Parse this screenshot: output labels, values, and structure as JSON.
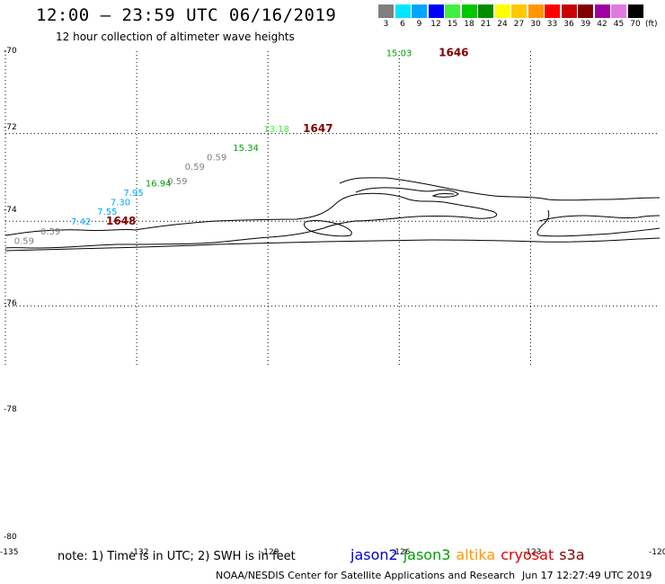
{
  "header": {
    "title": "12:00 – 23:59 UTC 06/16/2019",
    "subtitle": "12 hour collection of altimeter wave heights"
  },
  "legend": {
    "unit": "(ft)",
    "bins": [
      {
        "label": "3",
        "color": "#808080"
      },
      {
        "label": "6",
        "color": "#00e6ff"
      },
      {
        "label": "9",
        "color": "#00a6ff"
      },
      {
        "label": "12",
        "color": "#0000ff"
      },
      {
        "label": "15",
        "color": "#40f040"
      },
      {
        "label": "18",
        "color": "#00c800"
      },
      {
        "label": "21",
        "color": "#008c00"
      },
      {
        "label": "24",
        "color": "#ffff00"
      },
      {
        "label": "27",
        "color": "#ffc800"
      },
      {
        "label": "30",
        "color": "#ff9600"
      },
      {
        "label": "33",
        "color": "#ff0000"
      },
      {
        "label": "36",
        "color": "#c80000"
      },
      {
        "label": "39",
        "color": "#820000"
      },
      {
        "label": "42",
        "color": "#a000a0"
      },
      {
        "label": "45",
        "color": "#e07ae0"
      },
      {
        "label": "70",
        "color": "#000000"
      }
    ]
  },
  "map": {
    "lat_labels": [
      {
        "value": "-70",
        "lat": -70
      },
      {
        "value": "-72",
        "lat": -72
      },
      {
        "value": "-74",
        "lat": -74
      },
      {
        "value": "-76",
        "lat": -76
      },
      {
        "value": "-78",
        "lat": -78
      },
      {
        "value": "-80",
        "lat": -80
      }
    ],
    "lon_labels": [
      {
        "value": "-135",
        "lon": -135
      },
      {
        "value": "-132",
        "lon": -132
      },
      {
        "value": "-129",
        "lon": -129
      },
      {
        "value": "-126",
        "lon": -126
      },
      {
        "value": "-123",
        "lon": -123
      },
      {
        "value": "-120",
        "lon": -120
      }
    ],
    "observations": [
      {
        "text": "15.03",
        "color": "#00a000",
        "lon": -126.3,
        "lat": -70.1
      },
      {
        "text": "1646",
        "color": "#820000",
        "lon": -125.1,
        "lat": -70.1,
        "time": true
      },
      {
        "text": "13.18",
        "color": "#40f040",
        "lon": -129.1,
        "lat": -71.7
      },
      {
        "text": "1647",
        "color": "#820000",
        "lon": -128.2,
        "lat": -71.7,
        "time": true
      },
      {
        "text": "15.34",
        "color": "#00a000",
        "lon": -129.8,
        "lat": -72.1
      },
      {
        "text": "0.59",
        "color": "#808080",
        "lon": -130.4,
        "lat": -72.3
      },
      {
        "text": "0.59",
        "color": "#808080",
        "lon": -130.9,
        "lat": -72.5
      },
      {
        "text": "0.59",
        "color": "#808080",
        "lon": -131.3,
        "lat": -72.8
      },
      {
        "text": "16.94",
        "color": "#00a000",
        "lon": -131.8,
        "lat": -73.0
      },
      {
        "text": "7.95",
        "color": "#00a6ff",
        "lon": -132.3,
        "lat": -73.2
      },
      {
        "text": "7.30",
        "color": "#00a6ff",
        "lon": -132.6,
        "lat": -73.4
      },
      {
        "text": "7.55",
        "color": "#00a6ff",
        "lon": -132.9,
        "lat": -73.6
      },
      {
        "text": "7.42",
        "color": "#00a6ff",
        "lon": -133.5,
        "lat": -74.0
      },
      {
        "text": "1648",
        "color": "#820000",
        "lon": -132.7,
        "lat": -74.0,
        "time": true
      },
      {
        "text": "0.59",
        "color": "#808080",
        "lon": -134.2,
        "lat": -74.2
      },
      {
        "text": "0.59",
        "color": "#808080",
        "lon": -134.8,
        "lat": -74.4
      }
    ]
  },
  "footer": {
    "note": "note: 1) Time is in UTC; 2) SWH is in feet",
    "satellites": [
      {
        "name": "jason2",
        "color": "#0000cc"
      },
      {
        "name": "jason3",
        "color": "#00a000"
      },
      {
        "name": "altika",
        "color": "#ff9600"
      },
      {
        "name": "cryosat",
        "color": "#e00000"
      },
      {
        "name": "s3a",
        "color": "#820000"
      }
    ],
    "credit": "NOAA/NESDIS Center for Satellite Applications and Research",
    "timestamp": "Jun 17 12:27:49 UTC 2019"
  }
}
